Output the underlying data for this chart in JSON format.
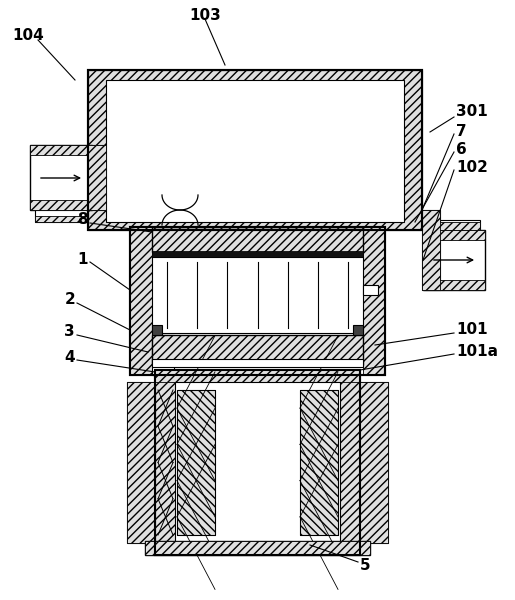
{
  "bg_color": "#ffffff",
  "lc": "#000000",
  "hatch_fc": "#e0e0e0",
  "dark_sq": "#404040",
  "labels": [
    "103",
    "104",
    "301",
    "7",
    "6",
    "8",
    "102",
    "1",
    "2",
    "3",
    "4",
    "101",
    "101a",
    "5"
  ]
}
